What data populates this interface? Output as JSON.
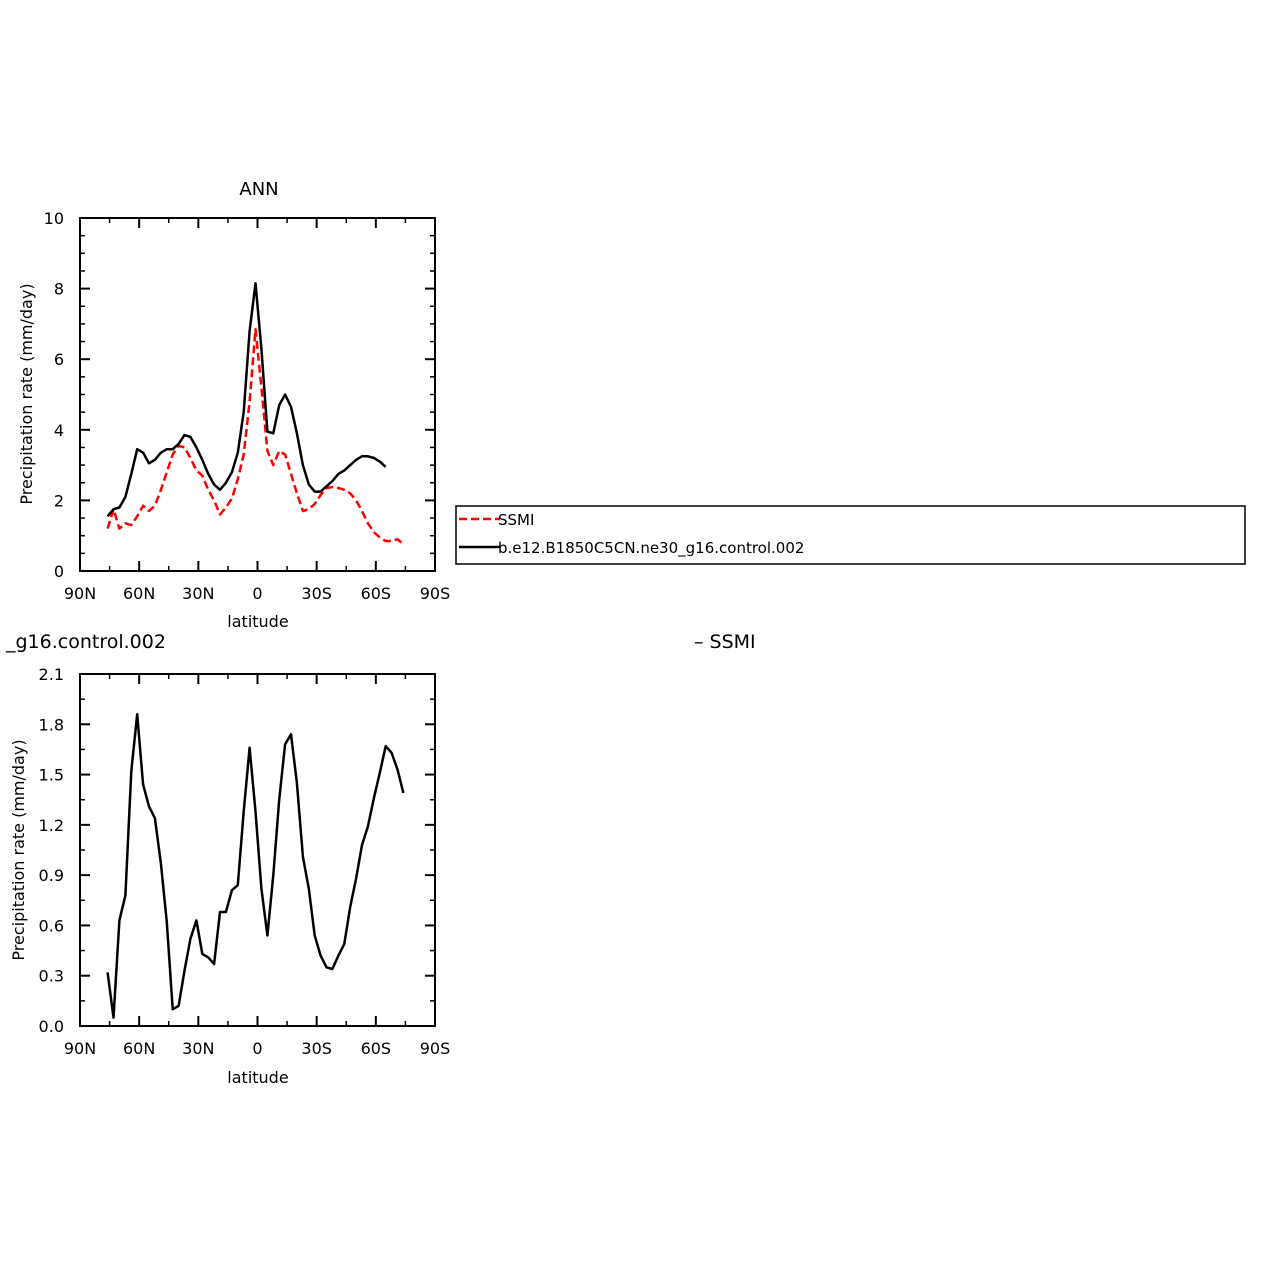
{
  "chart_data": [
    {
      "type": "line",
      "title": "ANN",
      "xlabel": "latitude",
      "ylabel": "Precipitation rate (mm/day)",
      "xlim": [
        90,
        -90
      ],
      "ylim": [
        0,
        10
      ],
      "x_ticks": [
        90,
        60,
        30,
        0,
        -30,
        -60,
        -90
      ],
      "x_tick_labels": [
        "90N",
        "60N",
        "30N",
        "0",
        "30S",
        "60S",
        "90S"
      ],
      "y_ticks": [
        0,
        2,
        4,
        6,
        8,
        10
      ],
      "y_tick_labels": [
        "0",
        "2",
        "4",
        "6",
        "8",
        "10"
      ],
      "legend": {
        "placement": "right",
        "entries": [
          "SSMI",
          "b.e12.B1850C5CN.ne30_g16.control.002"
        ]
      },
      "series": [
        {
          "name": "SSMI",
          "color": "#ff0000",
          "dashed": true,
          "x": [
            76,
            73,
            70,
            67,
            64,
            61,
            58,
            55,
            52,
            49,
            46,
            43,
            40,
            37,
            34,
            31,
            28,
            25,
            22,
            19,
            16,
            13,
            10,
            7,
            4,
            1,
            -2,
            -5,
            -8,
            -11,
            -14,
            -17,
            -20,
            -23,
            -26,
            -29,
            -32,
            -35,
            -38,
            -41,
            -44,
            -47,
            -50,
            -53,
            -56,
            -59,
            -62,
            -65,
            -68,
            -71,
            -74
          ],
          "values": [
            1.2,
            1.75,
            1.2,
            1.35,
            1.3,
            1.55,
            1.85,
            1.7,
            1.85,
            2.3,
            2.8,
            3.3,
            3.55,
            3.5,
            3.2,
            2.85,
            2.7,
            2.3,
            2.0,
            1.6,
            1.8,
            2.05,
            2.6,
            3.3,
            4.8,
            6.85,
            5.2,
            3.4,
            3.0,
            3.4,
            3.3,
            2.75,
            2.2,
            1.7,
            1.75,
            1.9,
            2.15,
            2.35,
            2.38,
            2.35,
            2.3,
            2.2,
            2.0,
            1.7,
            1.35,
            1.1,
            0.95,
            0.85,
            0.85,
            0.9,
            0.75
          ]
        },
        {
          "name": "b.e12.B1850C5CN.ne30_g16.control.002",
          "color": "#000000",
          "dashed": false,
          "x": [
            76,
            73,
            70,
            67,
            64,
            61,
            58,
            55,
            52,
            49,
            46,
            43,
            40,
            37,
            34,
            31,
            28,
            25,
            22,
            19,
            16,
            13,
            10,
            7,
            4,
            1,
            -2,
            -5,
            -8,
            -11,
            -14,
            -17,
            -20,
            -23,
            -26,
            -29,
            -32,
            -35,
            -38,
            -41,
            -44,
            -47,
            -50,
            -53,
            -56,
            -59,
            -62,
            -65
          ],
          "values": [
            1.55,
            1.75,
            1.8,
            2.1,
            2.75,
            3.45,
            3.35,
            3.05,
            3.15,
            3.35,
            3.45,
            3.45,
            3.6,
            3.85,
            3.8,
            3.5,
            3.15,
            2.75,
            2.45,
            2.3,
            2.5,
            2.8,
            3.35,
            4.5,
            6.8,
            8.15,
            6.3,
            3.95,
            3.9,
            4.7,
            5.0,
            4.65,
            3.9,
            3.0,
            2.45,
            2.25,
            2.25,
            2.4,
            2.55,
            2.75,
            2.85,
            3.0,
            3.15,
            3.25,
            3.25,
            3.2,
            3.1,
            2.95
          ]
        }
      ]
    },
    {
      "type": "line",
      "title": "_g16.control.002",
      "subtitle": "– SSMI",
      "xlabel": "latitude",
      "ylabel": "Precipitation rate (mm/day)",
      "xlim": [
        90,
        -90
      ],
      "ylim": [
        0,
        2.1
      ],
      "x_ticks": [
        90,
        60,
        30,
        0,
        -30,
        -60,
        -90
      ],
      "x_tick_labels": [
        "90N",
        "60N",
        "30N",
        "0",
        "30S",
        "60S",
        "90S"
      ],
      "y_ticks": [
        0,
        0.3,
        0.6,
        0.9,
        1.2,
        1.5,
        1.8,
        2.1
      ],
      "y_tick_labels": [
        "0.0",
        "0.3",
        "0.6",
        "0.9",
        "1.2",
        "1.5",
        "1.8",
        "2.1"
      ],
      "series": [
        {
          "color": "#000000",
          "dashed": false,
          "x": [
            76,
            73,
            70,
            67,
            64,
            61,
            58,
            55,
            52,
            49,
            46,
            43,
            40,
            37,
            34,
            31,
            28,
            25,
            22,
            19,
            16,
            13,
            10,
            7,
            4,
            1,
            -2,
            -5,
            -8,
            -11,
            -14,
            -17,
            -20,
            -23,
            -26,
            -29,
            -32,
            -35,
            -38,
            -41,
            -44,
            -47,
            -50,
            -53,
            -56,
            -59,
            -62,
            -65
          ],
          "values": [
            0.32,
            0.05,
            0.63,
            0.78,
            1.52,
            1.86,
            1.44,
            1.31,
            1.24,
            0.97,
            0.62,
            0.1,
            0.12,
            0.33,
            0.52,
            0.63,
            0.43,
            0.41,
            0.37,
            0.68,
            0.68,
            0.81,
            0.84,
            1.28,
            1.66,
            1.28,
            0.82,
            0.54,
            0.9,
            1.35,
            1.68,
            1.74,
            1.45,
            1.01,
            0.82,
            0.54,
            0.42,
            0.35,
            0.34,
            0.42,
            0.49,
            0.71,
            0.88,
            1.08,
            1.19,
            1.36,
            1.51,
            1.67
          ]
        }
      ],
      "extra_tail": {
        "x": [
          -68,
          -71,
          -74
        ],
        "values": [
          1.63,
          1.53,
          1.39
        ]
      }
    }
  ]
}
